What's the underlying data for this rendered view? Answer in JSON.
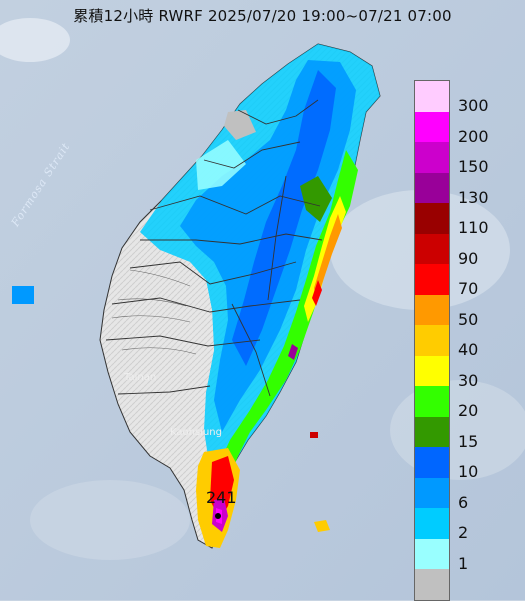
{
  "title": "累積12小時 RWRF 2025/07/20 19:00~07/21 07:00",
  "map_labels": {
    "strait": "Formosa Strait",
    "tainan": "Tainan",
    "kaohsiung": "Kaohsiung",
    "max_value": "241"
  },
  "legend": {
    "levels": [
      {
        "label": "300",
        "color": "#ffccff"
      },
      {
        "label": "200",
        "color": "#ff00ff"
      },
      {
        "label": "150",
        "color": "#cc00cc"
      },
      {
        "label": "130",
        "color": "#990099"
      },
      {
        "label": "110",
        "color": "#990000"
      },
      {
        "label": "90",
        "color": "#cc0000"
      },
      {
        "label": "70",
        "color": "#ff0000"
      },
      {
        "label": "50",
        "color": "#ff9900"
      },
      {
        "label": "40",
        "color": "#ffcc00"
      },
      {
        "label": "30",
        "color": "#ffff00"
      },
      {
        "label": "20",
        "color": "#33ff00"
      },
      {
        "label": "15",
        "color": "#339900"
      },
      {
        "label": "10",
        "color": "#0066ff"
      },
      {
        "label": "6",
        "color": "#0099ff"
      },
      {
        "label": "2",
        "color": "#00ccff"
      },
      {
        "label": "1",
        "color": "#99ffff"
      },
      {
        "label": "",
        "color": "#c0c0c0"
      }
    ]
  }
}
